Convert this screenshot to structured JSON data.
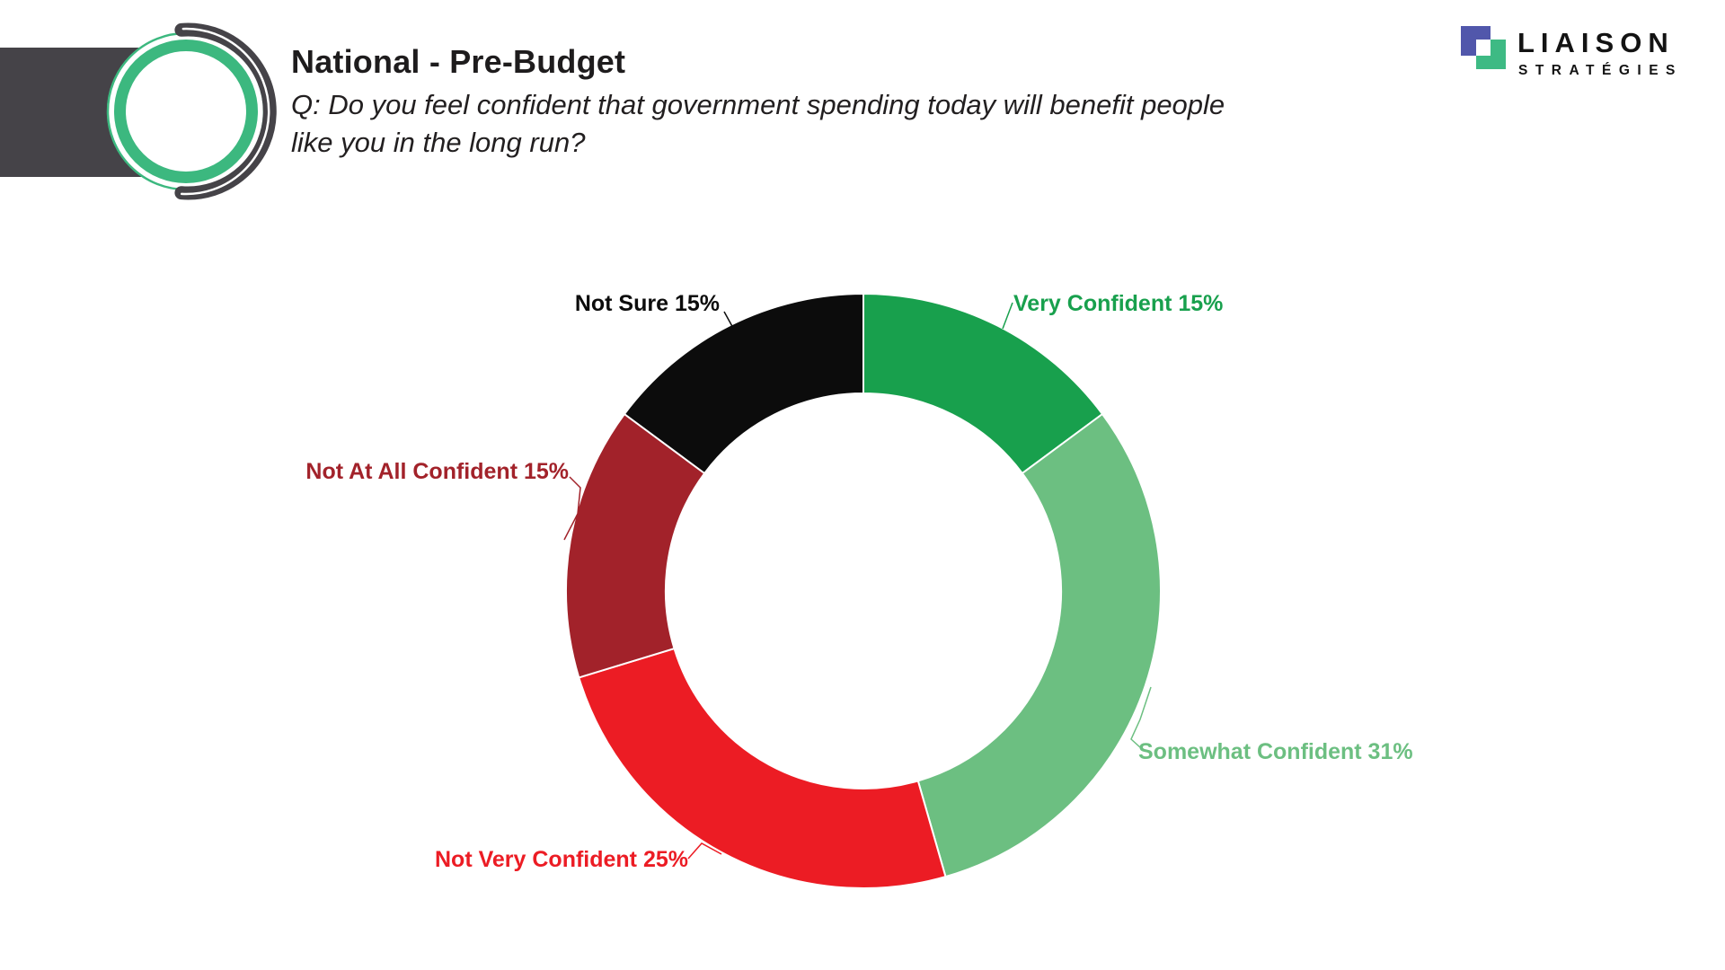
{
  "header": {
    "title": "National - Pre-Budget",
    "question_line1": "Q: Do you feel confident that government spending today will benefit people",
    "question_line2": "like you in the long run?"
  },
  "brand": {
    "name": "LIAISON",
    "subname": "STRATÉGIES",
    "icon_blue": "#5157ab",
    "icon_green": "#3eba84",
    "emblem_green": "#3cb87f",
    "emblem_gray": "#454348"
  },
  "chart_data": {
    "type": "pie",
    "variant": "donut",
    "direction": "clockwise",
    "start_angle_deg": 0,
    "legend_position": "outside-labels",
    "slices": [
      {
        "label": "Very Confident",
        "value": 15,
        "display": "Very Confident 15%",
        "color": "#18a04d"
      },
      {
        "label": "Somewhat Confident",
        "value": 31,
        "display": "Somewhat Confident 31%",
        "color": "#6cbf81"
      },
      {
        "label": "Not Very Confident",
        "value": 25,
        "display": "Not Very Confident 25%",
        "color": "#ec1c24"
      },
      {
        "label": "Not At All Confident",
        "value": 15,
        "display": "Not At All Confident 15%",
        "color": "#a2222a"
      },
      {
        "label": "Not Sure",
        "value": 15,
        "display": "Not Sure 15%",
        "color": "#0c0c0c"
      }
    ]
  }
}
